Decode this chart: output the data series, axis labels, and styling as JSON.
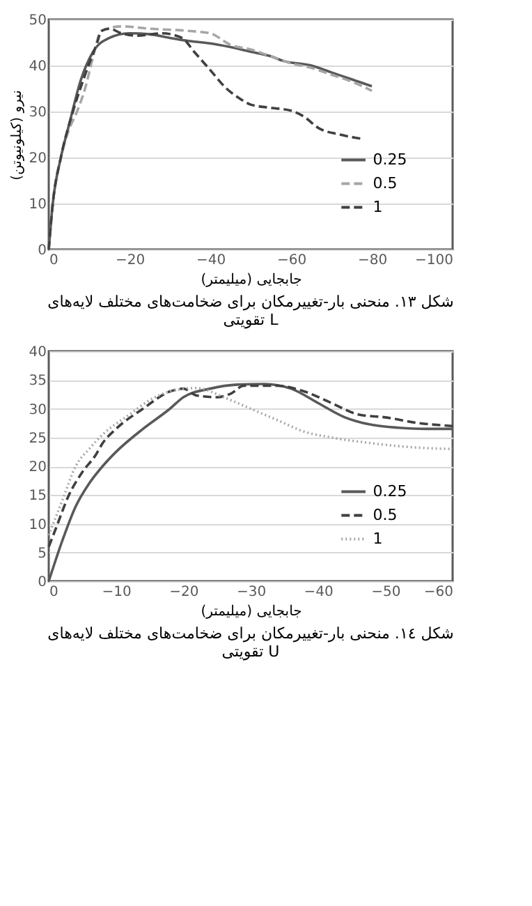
{
  "chart_data": [
    {
      "type": "line",
      "xlabel": "جابجایی (میلیمتر)",
      "ylabel": "نیرو (کیلونیوتن)",
      "annotations": [
        "شکل ١٣. منحنی بار-تغییرمکان برای ضخامت‌های مختلف لایه‌های",
        "تقویتی L"
      ],
      "xlim": [
        0,
        -100
      ],
      "xticks": [
        0,
        -20,
        -40,
        -60,
        -80,
        -100
      ],
      "ylim": [
        0,
        50
      ],
      "yticks": [
        0,
        10,
        20,
        30,
        40,
        50
      ],
      "grid": "y",
      "legend": "right",
      "series": [
        {
          "name": "0.25",
          "color": "#595959",
          "line_style": "solid",
          "x": [
            0,
            -1,
            -3,
            -5,
            -8,
            -11,
            -15,
            -20,
            -25,
            -30,
            -35,
            -40,
            -45,
            -50,
            -55,
            -58,
            -65,
            -70,
            -75,
            -80
          ],
          "values": [
            0,
            10,
            20,
            27,
            37,
            43,
            46,
            47,
            46.8,
            46,
            45.3,
            44.8,
            44,
            43,
            42,
            41,
            40,
            38.5,
            37,
            35.5
          ]
        },
        {
          "name": "0.5",
          "color": "#a6a6a6",
          "line_style": "dashed",
          "x": [
            0,
            -1,
            -3,
            -5,
            -7,
            -9,
            -11,
            -13,
            -18,
            -25,
            -35,
            -40,
            -45,
            -50,
            -55,
            -60,
            -65,
            -70,
            -75,
            -80
          ],
          "values": [
            0,
            10,
            20,
            26,
            30,
            35,
            42,
            47.5,
            48.5,
            48,
            47.5,
            47,
            44.5,
            43.5,
            42,
            40.5,
            39.5,
            38,
            36.5,
            34.5
          ]
        },
        {
          "name": "1",
          "color": "#404040",
          "line_style": "dashed",
          "x": [
            0,
            -1,
            -3,
            -6,
            -9,
            -12,
            -13,
            -15,
            -18,
            -22,
            -28,
            -33,
            -36,
            -40,
            -44,
            -47,
            -50,
            -55,
            -60,
            -63,
            -67,
            -72,
            -78
          ],
          "values": [
            0,
            10,
            20,
            30,
            38,
            45,
            47.5,
            48,
            47,
            46.5,
            47,
            46,
            43,
            39,
            35,
            33,
            31.5,
            30.8,
            30.2,
            29,
            26.3,
            25,
            24
          ]
        }
      ]
    },
    {
      "type": "line",
      "xlabel": "جابجایی (میلیمتر)",
      "annotations": [
        "شکل ١٤. منحنی بار-تغییرمکان برای ضخامت‌های مختلف لایه‌های",
        "تقویتی U"
      ],
      "xlim": [
        0,
        -60
      ],
      "xticks": [
        0,
        -10,
        -20,
        -30,
        -40,
        -50,
        -60
      ],
      "ylim": [
        0,
        40
      ],
      "yticks": [
        0,
        5,
        10,
        15,
        20,
        25,
        30,
        35,
        40
      ],
      "grid": "y",
      "legend": "right",
      "series": [
        {
          "name": "0.25",
          "color": "#595959",
          "line_style": "solid",
          "x": [
            0,
            -2,
            -4,
            -6,
            -8,
            -10,
            -14,
            -18,
            -20,
            -24,
            -28,
            -32,
            -36,
            -40,
            -44,
            -48,
            -52,
            -56,
            -60
          ],
          "values": [
            0,
            7,
            13,
            17,
            20,
            22.5,
            26.5,
            30,
            32,
            33.5,
            34.2,
            34.3,
            33.5,
            31,
            28.5,
            27.2,
            26.7,
            26.5,
            26.5
          ]
        },
        {
          "name": "0.5",
          "color": "#404040",
          "line_style": "dashed",
          "x": [
            0,
            -1,
            -3,
            -5,
            -7,
            -8,
            -10,
            -14,
            -18,
            -20,
            -22,
            -25,
            -27,
            -29,
            -34,
            -38,
            -42,
            -46,
            -50,
            -55,
            -60
          ],
          "values": [
            6,
            9,
            15,
            19,
            22,
            24,
            26.5,
            30,
            33,
            33.5,
            32.3,
            32,
            32.6,
            34,
            34,
            33,
            31,
            29,
            28.5,
            27.5,
            27
          ]
        },
        {
          "name": "1",
          "color": "#a6a6a6",
          "line_style": "dotted",
          "x": [
            0,
            -2,
            -4,
            -6,
            -8,
            -12,
            -15,
            -18,
            -22,
            -26,
            -30,
            -34,
            -38,
            -42,
            -48,
            -54,
            -60
          ],
          "values": [
            8,
            14,
            20,
            23,
            25.5,
            29,
            31.5,
            33,
            33.6,
            32,
            30,
            28,
            26,
            25,
            24,
            23.3,
            23
          ]
        }
      ]
    }
  ]
}
